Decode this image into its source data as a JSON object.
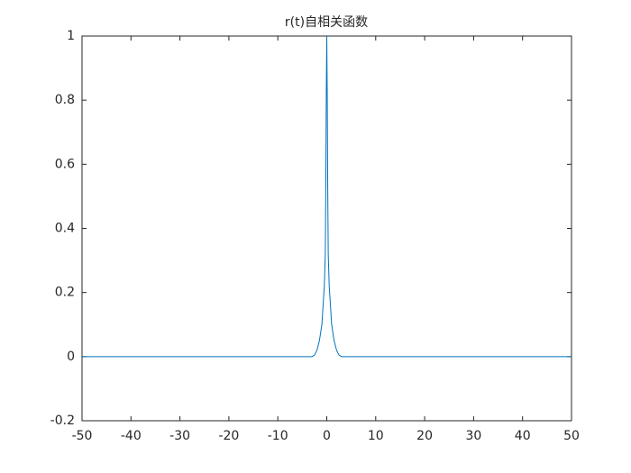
{
  "chart_data": {
    "type": "line",
    "title": "r(t)自相关函数",
    "x": [
      -50,
      -3,
      -2.5,
      -2,
      -1.5,
      -1,
      -0.5,
      -0.3,
      -0.2,
      -0.1,
      0,
      0.1,
      0.2,
      0.3,
      0.5,
      1,
      1.5,
      2,
      2.5,
      3,
      50
    ],
    "series": [
      {
        "color": "#0072bd",
        "values": [
          0,
          0,
          0.005,
          0.02,
          0.05,
          0.1,
          0.22,
          0.32,
          0.52,
          0.81,
          1,
          0.81,
          0.52,
          0.32,
          0.22,
          0.1,
          0.05,
          0.02,
          0.005,
          0,
          0
        ]
      }
    ],
    "xlim": [
      -50,
      50
    ],
    "xticks": [
      -50,
      -40,
      -30,
      -20,
      -10,
      0,
      10,
      20,
      30,
      40,
      50
    ],
    "ylim": [
      -0.2,
      1
    ],
    "yticks": [
      -0.2,
      0,
      0.2,
      0.4,
      0.6,
      0.8,
      1
    ],
    "grid": false
  }
}
